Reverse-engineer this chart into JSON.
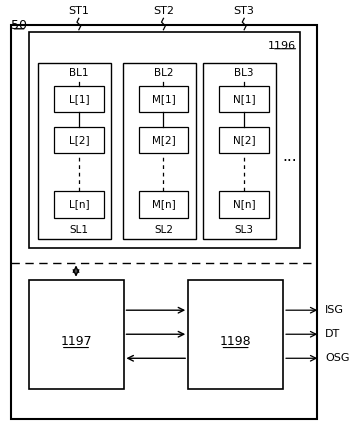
{
  "bg_color": "#ffffff",
  "label_50": "50",
  "label_1196": "1196",
  "label_1197": "1197",
  "label_1198": "1198",
  "st_labels": [
    "ST1",
    "ST2",
    "ST3"
  ],
  "bl_labels": [
    "BL1",
    "BL2",
    "BL3"
  ],
  "sl_labels": [
    "SL1",
    "SL2",
    "SL3"
  ],
  "col1_cells": [
    "L[1]",
    "L[2]",
    "L[n]"
  ],
  "col2_cells": [
    "M[1]",
    "M[2]",
    "M[n]"
  ],
  "col3_cells": [
    "N[1]",
    "N[2]",
    "N[n]"
  ],
  "signal_labels": [
    "ISG",
    "DT",
    "OSG"
  ],
  "dots": "..."
}
